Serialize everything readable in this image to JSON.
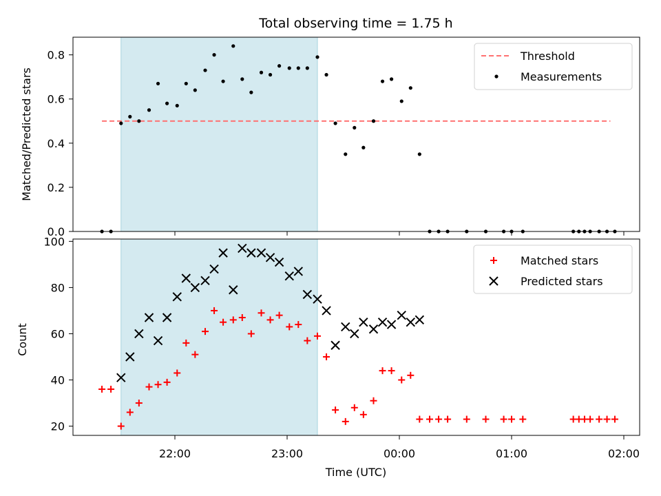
{
  "chart_data": [
    {
      "type": "scatter",
      "title": "Total observing time = 1.75 h",
      "xlabel": "",
      "ylabel": "Matched/Predicted stars",
      "ylim": [
        0,
        0.88
      ],
      "yticks": [
        "0.0",
        "0.2",
        "0.4",
        "0.6",
        "0.8"
      ],
      "ytick_values": [
        0.0,
        0.2,
        0.4,
        0.6,
        0.8
      ],
      "shaded_region": {
        "from_hours": 21.52,
        "to_hours": 23.27,
        "color": "#d4eaf0"
      },
      "legend_position": "top-right",
      "series": [
        {
          "name": "Threshold",
          "type": "line",
          "style": "dashed",
          "color": "#ff7070",
          "x_hours": [
            21.35,
            25.88
          ],
          "values": [
            0.5,
            0.5
          ]
        },
        {
          "name": "Measurements",
          "type": "scatter",
          "color": "#000000",
          "x_hours": [
            21.35,
            21.43,
            21.52,
            21.6,
            21.68,
            21.77,
            21.85,
            21.93,
            22.02,
            22.1,
            22.18,
            22.27,
            22.35,
            22.43,
            22.52,
            22.6,
            22.68,
            22.77,
            22.85,
            22.93,
            23.02,
            23.1,
            23.18,
            23.27,
            23.35,
            23.43,
            23.52,
            23.6,
            23.68,
            23.77,
            23.85,
            23.93,
            24.02,
            24.1,
            24.18,
            24.27,
            24.35,
            24.43,
            24.6,
            24.77,
            24.93,
            25.0,
            25.1,
            25.55,
            25.6,
            25.65,
            25.7,
            25.78,
            25.85,
            25.92
          ],
          "values": [
            0.0,
            0.0,
            0.49,
            0.52,
            0.5,
            0.55,
            0.67,
            0.58,
            0.57,
            0.67,
            0.64,
            0.73,
            0.8,
            0.68,
            0.84,
            0.69,
            0.63,
            0.72,
            0.71,
            0.75,
            0.74,
            0.74,
            0.74,
            0.79,
            0.71,
            0.49,
            0.35,
            0.47,
            0.38,
            0.5,
            0.68,
            0.69,
            0.59,
            0.65,
            0.35,
            0.0,
            0.0,
            0.0,
            0.0,
            0.0,
            0.0,
            0.0,
            0.0,
            0.0,
            0.0,
            0.0,
            0.0,
            0.0,
            0.0,
            0.0
          ]
        }
      ]
    },
    {
      "type": "scatter",
      "title": "",
      "xlabel": "Time (UTC)",
      "ylabel": "Count",
      "ylim": [
        16,
        101
      ],
      "yticks": [
        "20",
        "40",
        "60",
        "80",
        "100"
      ],
      "ytick_values": [
        20,
        40,
        60,
        80,
        100
      ],
      "xticks": [
        "22:00",
        "23:00",
        "00:00",
        "01:00",
        "02:00"
      ],
      "xtick_values_hours": [
        22,
        23,
        24,
        25,
        26
      ],
      "legend_position": "top-right",
      "series": [
        {
          "name": "Matched stars",
          "marker": "+",
          "color": "#ff0000",
          "x_hours": [
            21.35,
            21.43,
            21.52,
            21.6,
            21.68,
            21.77,
            21.85,
            21.93,
            22.02,
            22.1,
            22.18,
            22.27,
            22.35,
            22.43,
            22.52,
            22.6,
            22.68,
            22.77,
            22.85,
            22.93,
            23.02,
            23.1,
            23.18,
            23.27,
            23.35,
            23.43,
            23.52,
            23.6,
            23.68,
            23.77,
            23.85,
            23.93,
            24.02,
            24.1,
            24.18,
            24.27,
            24.35,
            24.43,
            24.6,
            24.77,
            24.93,
            25.0,
            25.1,
            25.55,
            25.6,
            25.65,
            25.7,
            25.78,
            25.85,
            25.92
          ],
          "values": [
            36,
            36,
            20,
            26,
            30,
            37,
            38,
            39,
            43,
            56,
            51,
            61,
            70,
            65,
            66,
            67,
            60,
            69,
            66,
            68,
            63,
            64,
            57,
            59,
            50,
            27,
            22,
            28,
            25,
            31,
            44,
            44,
            40,
            42,
            23,
            23,
            23,
            23,
            23,
            23,
            23,
            23,
            23,
            23,
            23,
            23,
            23,
            23,
            23,
            23
          ]
        },
        {
          "name": "Predicted stars",
          "marker": "x",
          "color": "#000000",
          "x_hours": [
            21.52,
            21.6,
            21.68,
            21.77,
            21.85,
            21.93,
            22.02,
            22.1,
            22.18,
            22.27,
            22.35,
            22.43,
            22.52,
            22.6,
            22.68,
            22.77,
            22.85,
            22.93,
            23.02,
            23.1,
            23.18,
            23.27,
            23.35,
            23.43,
            23.52,
            23.6,
            23.68,
            23.77,
            23.85,
            23.93,
            24.02,
            24.1,
            24.18
          ],
          "values": [
            41,
            50,
            60,
            67,
            57,
            67,
            76,
            84,
            80,
            83,
            88,
            95,
            79,
            97,
            95,
            95,
            93,
            91,
            85,
            87,
            77,
            75,
            70,
            55,
            63,
            60,
            65,
            62,
            65,
            64,
            68,
            65,
            66
          ]
        }
      ]
    }
  ]
}
